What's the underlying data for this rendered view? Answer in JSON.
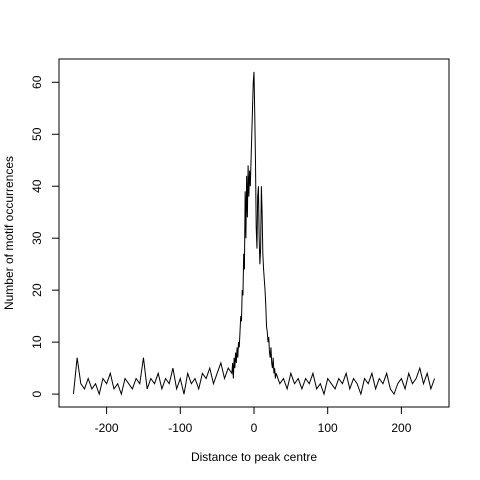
{
  "chart_data": {
    "type": "line",
    "x_label": "Distance to peak centre",
    "y_label": "Number of motif occurrences",
    "xlim": [
      -264.6,
      264.6
    ],
    "ylim": [
      -2.48,
      64.48
    ],
    "xticks": [
      -200,
      -100,
      0,
      100,
      200
    ],
    "yticks": [
      0,
      10,
      20,
      30,
      40,
      50,
      60
    ],
    "color": "#000000",
    "x": [
      -245,
      -240,
      -235,
      -230,
      -225,
      -220,
      -215,
      -210,
      -205,
      -200,
      -195,
      -190,
      -185,
      -180,
      -175,
      -170,
      -165,
      -160,
      -155,
      -150,
      -145,
      -140,
      -135,
      -130,
      -125,
      -120,
      -115,
      -110,
      -105,
      -100,
      -95,
      -90,
      -85,
      -80,
      -75,
      -70,
      -65,
      -60,
      -55,
      -50,
      -45,
      -40,
      -35,
      -30,
      -29,
      -28,
      -27,
      -26,
      -25,
      -24,
      -23,
      -22,
      -21,
      -20,
      -19,
      -18,
      -17,
      -16,
      -15,
      -14,
      -13,
      -12,
      -11,
      -10,
      -9,
      -8,
      -7,
      -6,
      -5,
      -4,
      -3,
      -2,
      -1,
      0,
      1,
      2,
      3,
      4,
      5,
      6,
      7,
      8,
      9,
      10,
      11,
      12,
      13,
      14,
      15,
      16,
      17,
      18,
      19,
      20,
      21,
      22,
      23,
      24,
      25,
      26,
      27,
      28,
      29,
      30,
      35,
      40,
      45,
      50,
      55,
      60,
      65,
      70,
      75,
      80,
      85,
      90,
      95,
      100,
      105,
      110,
      115,
      120,
      125,
      130,
      135,
      140,
      145,
      150,
      155,
      160,
      165,
      170,
      175,
      180,
      185,
      190,
      195,
      200,
      205,
      210,
      215,
      220,
      225,
      230,
      235,
      240,
      245
    ],
    "values": [
      0,
      7,
      2,
      1,
      3,
      1,
      2,
      0,
      3,
      2,
      4,
      1,
      2,
      0,
      3,
      2,
      1,
      3,
      2,
      7,
      1,
      3,
      2,
      4,
      1,
      3,
      2,
      5,
      1,
      3,
      0,
      4,
      2,
      3,
      1,
      4,
      3,
      5,
      2,
      4,
      6,
      3,
      5,
      4,
      6,
      3,
      7,
      5,
      8,
      6,
      9,
      7,
      10,
      9,
      12,
      15,
      14,
      20,
      19,
      27,
      24,
      39,
      30,
      42,
      34,
      44,
      38,
      43,
      40,
      45,
      50,
      55,
      60,
      62,
      54,
      45,
      32,
      28,
      38,
      40,
      30,
      25,
      28,
      40,
      35,
      27,
      24,
      22,
      20,
      17,
      13,
      12,
      10,
      11,
      8,
      7,
      9,
      6,
      5,
      7,
      4,
      5,
      3,
      4,
      2,
      3,
      1,
      4,
      2,
      3,
      1,
      3,
      2,
      4,
      1,
      2,
      0,
      3,
      2,
      1,
      3,
      2,
      4,
      1,
      3,
      2,
      0,
      3,
      2,
      4,
      1,
      3,
      2,
      4,
      1,
      0,
      2,
      3,
      1,
      4,
      2,
      3,
      5,
      2,
      4,
      1,
      3
    ]
  }
}
